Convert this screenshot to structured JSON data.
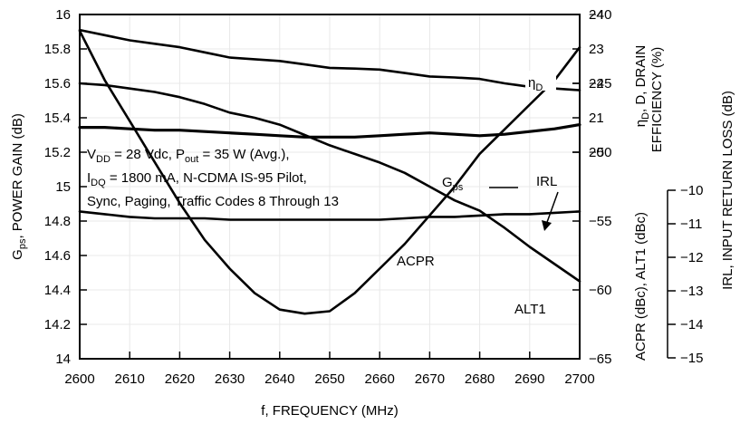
{
  "chart_data": {
    "type": "line",
    "x": [
      2600,
      2605,
      2610,
      2615,
      2620,
      2625,
      2630,
      2635,
      2640,
      2645,
      2650,
      2655,
      2660,
      2665,
      2670,
      2675,
      2680,
      2685,
      2690,
      2695,
      2700
    ],
    "xlabel": "f, FREQUENCY (MHz)",
    "xlim": [
      2600,
      2700
    ],
    "xticks": [
      "2600",
      "2610",
      "2620",
      "2630",
      "2640",
      "2650",
      "2660",
      "2670",
      "2680",
      "2690",
      "2700"
    ],
    "left_axis": {
      "label": "G_ps, POWER GAIN (dB)",
      "ylim": [
        14,
        16
      ],
      "ticks": [
        "14",
        "14.2",
        "14.4",
        "14.6",
        "14.8",
        "15",
        "15.2",
        "15.4",
        "15.6",
        "15.8",
        "16"
      ]
    },
    "right_axes": [
      {
        "label": "ηD, DRAIN EFFICIENCY (%)",
        "label_main": "D, DRAIN",
        "label_sub": "EFFICIENCY (%)",
        "ylim": [
          14,
          24
        ],
        "ticks": [
          "20",
          "21",
          "22",
          "23",
          "24"
        ]
      },
      {
        "label": "ACPR (dBc), ALT1 (dBc)",
        "ylim": [
          -65,
          -40
        ],
        "ticks": [
          "-40",
          "-45",
          "-50",
          "-55",
          "-60",
          "-65"
        ]
      },
      {
        "label": "IRL, INPUT RETURN LOSS (dB)",
        "ylim": [
          -15,
          -10
        ],
        "ticks": [
          "-10",
          "-11",
          "-12",
          "-13",
          "-14",
          "-15"
        ]
      }
    ],
    "series": [
      {
        "name": "ηD",
        "axis": "efficiency",
        "values": [
          23.55,
          23.4,
          23.25,
          23.15,
          23.05,
          22.9,
          22.75,
          22.7,
          22.65,
          22.55,
          22.45,
          22.43,
          22.4,
          22.3,
          22.2,
          22.17,
          22.13,
          22.0,
          21.9,
          21.85,
          21.8
        ]
      },
      {
        "name": "G_ps",
        "axis": "gain",
        "values": [
          15.6,
          15.59,
          15.57,
          15.55,
          15.52,
          15.48,
          15.43,
          15.4,
          15.36,
          15.3,
          15.24,
          15.19,
          15.14,
          15.08,
          15.0,
          14.92,
          14.86,
          14.76,
          14.65,
          14.55,
          14.45
        ]
      },
      {
        "name": "IRL",
        "axis": "irl",
        "values": [
          -10.2,
          -10.8,
          -11.3,
          -11.8,
          -12.3,
          -12.75,
          -13.1,
          -13.4,
          -13.6,
          -13.65,
          -13.62,
          -13.4,
          -13.1,
          -12.8,
          -12.45,
          -12.1,
          -11.7,
          -11.4,
          -11.1,
          -10.8,
          -10.4
        ]
      },
      {
        "name": "ACPR",
        "axis": "acpr",
        "values": [
          -48.2,
          -48.2,
          -48.3,
          -48.4,
          -48.4,
          -48.5,
          -48.6,
          -48.7,
          -48.8,
          -48.9,
          -48.9,
          -48.9,
          -48.8,
          -48.7,
          -48.6,
          -48.7,
          -48.8,
          -48.7,
          -48.5,
          -48.3,
          -48.0
        ]
      },
      {
        "name": "ALT1",
        "axis": "acpr",
        "values": [
          -54.3,
          -54.5,
          -54.7,
          -54.8,
          -54.8,
          -54.8,
          -54.9,
          -54.9,
          -54.9,
          -54.9,
          -54.9,
          -54.9,
          -54.9,
          -54.8,
          -54.7,
          -54.7,
          -54.6,
          -54.5,
          -54.5,
          -54.4,
          -54.3
        ]
      }
    ],
    "condition_lines": [
      "V_DD = 28 Vdc, P_out = 35 W (Avg.),",
      "I_DQ = 1800 mA, N-CDMA IS-95 Pilot,",
      "Sync, Paging, Traffic Codes 8 Through 13"
    ],
    "labels": {
      "eta": "η",
      "eta_sub": "D",
      "gps": "G",
      "gps_sub": "ps",
      "irl": "IRL",
      "acpr": "ACPR",
      "alt1": "ALT1",
      "left_main": "G",
      "left_sub": "ps",
      "left_rest": ", POWER GAIN (dB)",
      "c1a": "V",
      "c1b": "DD",
      "c1c": " = 28 Vdc, P",
      "c1d": "out",
      "c1e": " = 35 W (Avg.),",
      "c2a": "I",
      "c2b": "DQ",
      "c2c": " = 1800 mA, N-CDMA IS-95 Pilot,",
      "c3": "Sync, Paging, Traffic Codes 8 Through 13"
    },
    "colors": {
      "line": "#000000",
      "background": "#ffffff"
    }
  }
}
